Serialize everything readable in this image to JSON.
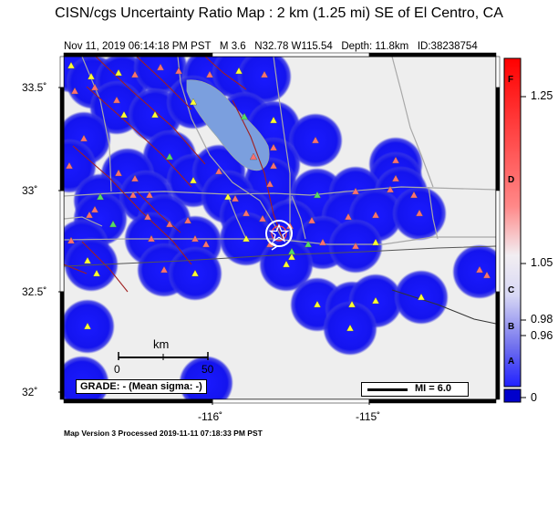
{
  "header": {
    "title": "CISN/cgs Uncertainty Ratio Map : 2 km (1.25 mi) SE of El Centro, CA",
    "date": "Nov 11, 2019 06:14:18 PM PST",
    "magnitude": "M 3.6",
    "location": "N32.78 W115.54",
    "depth": "Depth: 11.8km",
    "event_id": "ID:38238754"
  },
  "axes": {
    "y_labels": [
      "33.5˚",
      "33˚",
      "32.5˚",
      "32˚"
    ],
    "x_labels": [
      "-116˚",
      "-115˚"
    ]
  },
  "scale_bar": {
    "unit": "km",
    "start": "0",
    "end": "50"
  },
  "grade": "GRADE: - (Mean sigma: -)",
  "legend": {
    "mi": "MI = 6.0"
  },
  "colorbar": {
    "values": [
      "1.25",
      "1.05",
      "0.98",
      "0.96",
      "0"
    ],
    "letters": [
      "F",
      "D",
      "C",
      "B",
      "A"
    ]
  },
  "footer": "Map Version 3 Processed 2019-11-11 07:18:33 PM PST"
}
